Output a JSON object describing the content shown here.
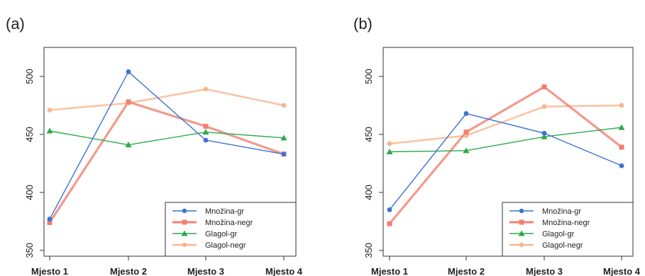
{
  "chart_data": [
    {
      "type": "line",
      "panel_label": "(a)",
      "categories": [
        "Mjesto 1",
        "Mjesto 2",
        "Mjesto 3",
        "Mjesto 4"
      ],
      "ylim": [
        345,
        525
      ],
      "yticks": [
        350,
        400,
        450,
        500
      ],
      "grid": false,
      "legend_position": "bottom-right",
      "series": [
        {
          "name": "Množina-gr",
          "values": [
            377,
            504,
            445,
            433
          ],
          "color": "#3B73D3",
          "marker": "circle"
        },
        {
          "name": "Množina-negr",
          "values": [
            374,
            478,
            457,
            433
          ],
          "color": "#F08070",
          "marker": "square"
        },
        {
          "name": "Glagol-gr",
          "values": [
            453,
            441,
            452,
            447
          ],
          "color": "#2DAA4B",
          "marker": "triangle"
        },
        {
          "name": "Glagol-negr",
          "values": [
            471,
            477,
            489,
            475
          ],
          "color": "#F6B78F",
          "marker": "circle"
        }
      ]
    },
    {
      "type": "line",
      "panel_label": "(b)",
      "categories": [
        "Mjesto 1",
        "Mjesto 2",
        "Mjesto 3",
        "Mjesto 4"
      ],
      "ylim": [
        345,
        525
      ],
      "yticks": [
        350,
        400,
        450,
        500
      ],
      "grid": false,
      "legend_position": "bottom-right",
      "series": [
        {
          "name": "Množina-gr",
          "values": [
            385,
            468,
            451,
            423
          ],
          "color": "#3B73D3",
          "marker": "circle"
        },
        {
          "name": "Množina-negr",
          "values": [
            373,
            452,
            491,
            439
          ],
          "color": "#F08070",
          "marker": "square"
        },
        {
          "name": "Glagol-gr",
          "values": [
            435,
            436,
            448,
            456
          ],
          "color": "#2DAA4B",
          "marker": "triangle"
        },
        {
          "name": "Glagol-negr",
          "values": [
            442,
            449,
            474,
            475
          ],
          "color": "#F6B78F",
          "marker": "circle"
        }
      ]
    }
  ]
}
